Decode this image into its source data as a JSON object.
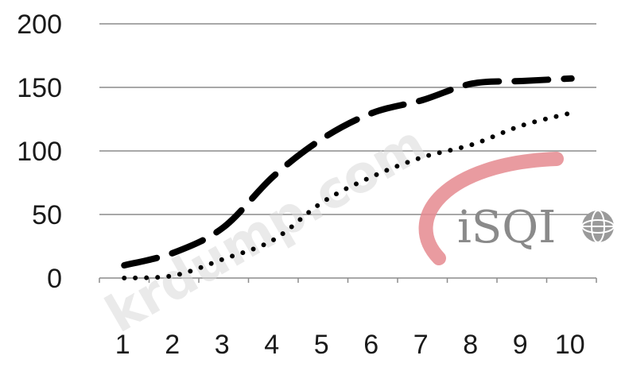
{
  "chart_data": {
    "type": "line",
    "title": "",
    "xlabel": "",
    "ylabel": "",
    "categories": [
      "1",
      "2",
      "3",
      "4",
      "5",
      "6",
      "7",
      "8",
      "9",
      "10"
    ],
    "x": [
      1,
      2,
      3,
      4,
      5,
      6,
      7,
      8,
      9,
      10
    ],
    "y_ticks": [
      "0",
      "50",
      "100",
      "150",
      "200"
    ],
    "ylim": [
      0,
      200
    ],
    "grid": "horizontal",
    "legend": "none",
    "series": [
      {
        "style": "dashed",
        "color": "#000000",
        "values": [
          10,
          20,
          40,
          80,
          110,
          130,
          140,
          153,
          155,
          157
        ]
      },
      {
        "style": "dotted",
        "color": "#000000",
        "values": [
          0,
          2,
          15,
          30,
          60,
          80,
          95,
          105,
          120,
          130
        ]
      }
    ]
  },
  "watermark": {
    "text": "krdump.com"
  },
  "logo": {
    "text": "iSQI",
    "arc_color": "#e58a8f",
    "text_color": "#8a8a8a",
    "globe_icon": "globe-icon"
  }
}
